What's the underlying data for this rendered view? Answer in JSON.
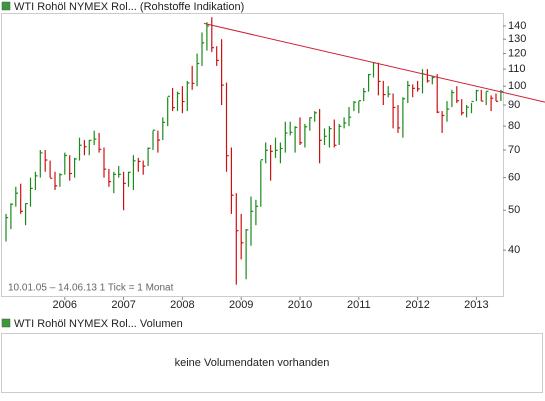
{
  "chart_data": {
    "type": "hlc_bar",
    "title": "WTI Rohöl NYMEX Rol... (Rohstoffe Indikation)",
    "range_note": "10.01.05 – 14.06.13   1 Tick = 1 Monat",
    "volume_title": "WTI Rohöl NYMEX Rol... Volumen",
    "volume_note": "keine Volumendaten vorhanden",
    "log_scale": true,
    "grid": false,
    "up_color": "#1a8a1a",
    "down_color": "#cc1111",
    "trend_color": "#cc2233",
    "ylim": [
      30.8,
      150.5
    ],
    "yticks": [
      40,
      50,
      60,
      70,
      80,
      90,
      100,
      110,
      120,
      130,
      140
    ],
    "categories": [
      null,
      null,
      null,
      null,
      null,
      null,
      null,
      null,
      null,
      null,
      null,
      null,
      "2006",
      null,
      null,
      null,
      null,
      null,
      null,
      null,
      null,
      null,
      null,
      null,
      "2007",
      null,
      null,
      null,
      null,
      null,
      null,
      null,
      null,
      null,
      null,
      null,
      "2008",
      null,
      null,
      null,
      null,
      null,
      null,
      null,
      null,
      null,
      null,
      null,
      "2009",
      null,
      null,
      null,
      null,
      null,
      null,
      null,
      null,
      null,
      null,
      null,
      "2010",
      null,
      null,
      null,
      null,
      null,
      null,
      null,
      null,
      null,
      null,
      null,
      "2011",
      null,
      null,
      null,
      null,
      null,
      null,
      null,
      null,
      null,
      null,
      null,
      "2012",
      null,
      null,
      null,
      null,
      null,
      null,
      null,
      null,
      null,
      null,
      null,
      "2013",
      null,
      null,
      null,
      null,
      null
    ],
    "high": [
      49,
      52,
      57,
      58,
      52,
      60,
      62,
      70,
      70,
      66,
      62,
      61.5,
      69,
      68,
      67,
      75,
      74,
      74,
      78,
      77,
      71,
      63,
      62,
      64,
      62,
      62,
      68,
      67,
      66,
      71,
      78,
      78,
      84,
      94,
      99,
      97,
      100,
      103,
      112,
      120,
      135,
      143,
      147,
      125,
      130,
      102,
      71,
      55,
      49,
      45,
      54,
      53,
      66,
      73,
      72,
      75,
      73,
      82,
      82,
      80,
      84,
      81,
      84,
      87,
      88,
      79,
      80,
      83,
      81,
      84,
      89,
      92,
      92,
      99,
      107,
      114,
      114,
      103,
      100,
      96,
      90,
      94,
      103,
      101,
      103,
      110,
      110,
      106,
      107,
      87,
      92,
      98,
      100,
      93,
      90,
      91,
      98,
      98,
      97,
      95,
      96,
      98
    ],
    "low": [
      42,
      45,
      51,
      49,
      46,
      51,
      56,
      60,
      62,
      60,
      56,
      57,
      61,
      59,
      60,
      66,
      68,
      68,
      72,
      69,
      60,
      57,
      55,
      60,
      50,
      57,
      56,
      62,
      61,
      64,
      70,
      69,
      74,
      80,
      87,
      87,
      86,
      87,
      98,
      100,
      112,
      122,
      121,
      112,
      90,
      62,
      49,
      33,
      38,
      34,
      41,
      46,
      51,
      65,
      59,
      67,
      65,
      69,
      76,
      69,
      72,
      71,
      78,
      82,
      65,
      72,
      71,
      71,
      72,
      79,
      80,
      87,
      86,
      92,
      97,
      105,
      95,
      90,
      94,
      79,
      77,
      75,
      91,
      94,
      97,
      96,
      102,
      101,
      86,
      77,
      82,
      89,
      91,
      85,
      84,
      86,
      92,
      92,
      90,
      87,
      92,
      92
    ],
    "close": [
      48,
      51.7,
      55,
      49.7,
      51.9,
      56.5,
      60.6,
      68.9,
      66.2,
      59.8,
      57.3,
      61,
      67.9,
      61.4,
      66.6,
      71.9,
      71.3,
      73.9,
      74.4,
      70.3,
      62.9,
      58.7,
      61.1,
      61.1,
      58.1,
      61.8,
      65.9,
      65.7,
      64,
      70.7,
      78.2,
      74,
      81.7,
      94.5,
      88.7,
      96,
      91.8,
      101.8,
      101.6,
      113.5,
      127.4,
      140,
      124,
      115.5,
      100.6,
      67.8,
      54.4,
      44.6,
      41.7,
      44.8,
      49.7,
      51.1,
      66.3,
      69.9,
      69.5,
      69.9,
      70.6,
      77,
      77.3,
      79.4,
      72.9,
      79.7,
      83.8,
      86.2,
      73.9,
      75.6,
      78.9,
      71.9,
      79.9,
      81.4,
      84.1,
      91.4,
      92.2,
      97,
      106.7,
      113.9,
      102.7,
      95.4,
      95.7,
      88.8,
      79.2,
      93.2,
      100.4,
      98.8,
      98.5,
      107.1,
      103,
      104.9,
      86.5,
      84.9,
      88,
      96.5,
      92.2,
      86.2,
      88.9,
      91.8,
      97.5,
      92,
      97.2,
      93.5,
      91.9,
      97
    ],
    "trendline": {
      "x": [
        40.4,
        110
      ],
      "y": [
        142,
        91.5
      ]
    }
  }
}
